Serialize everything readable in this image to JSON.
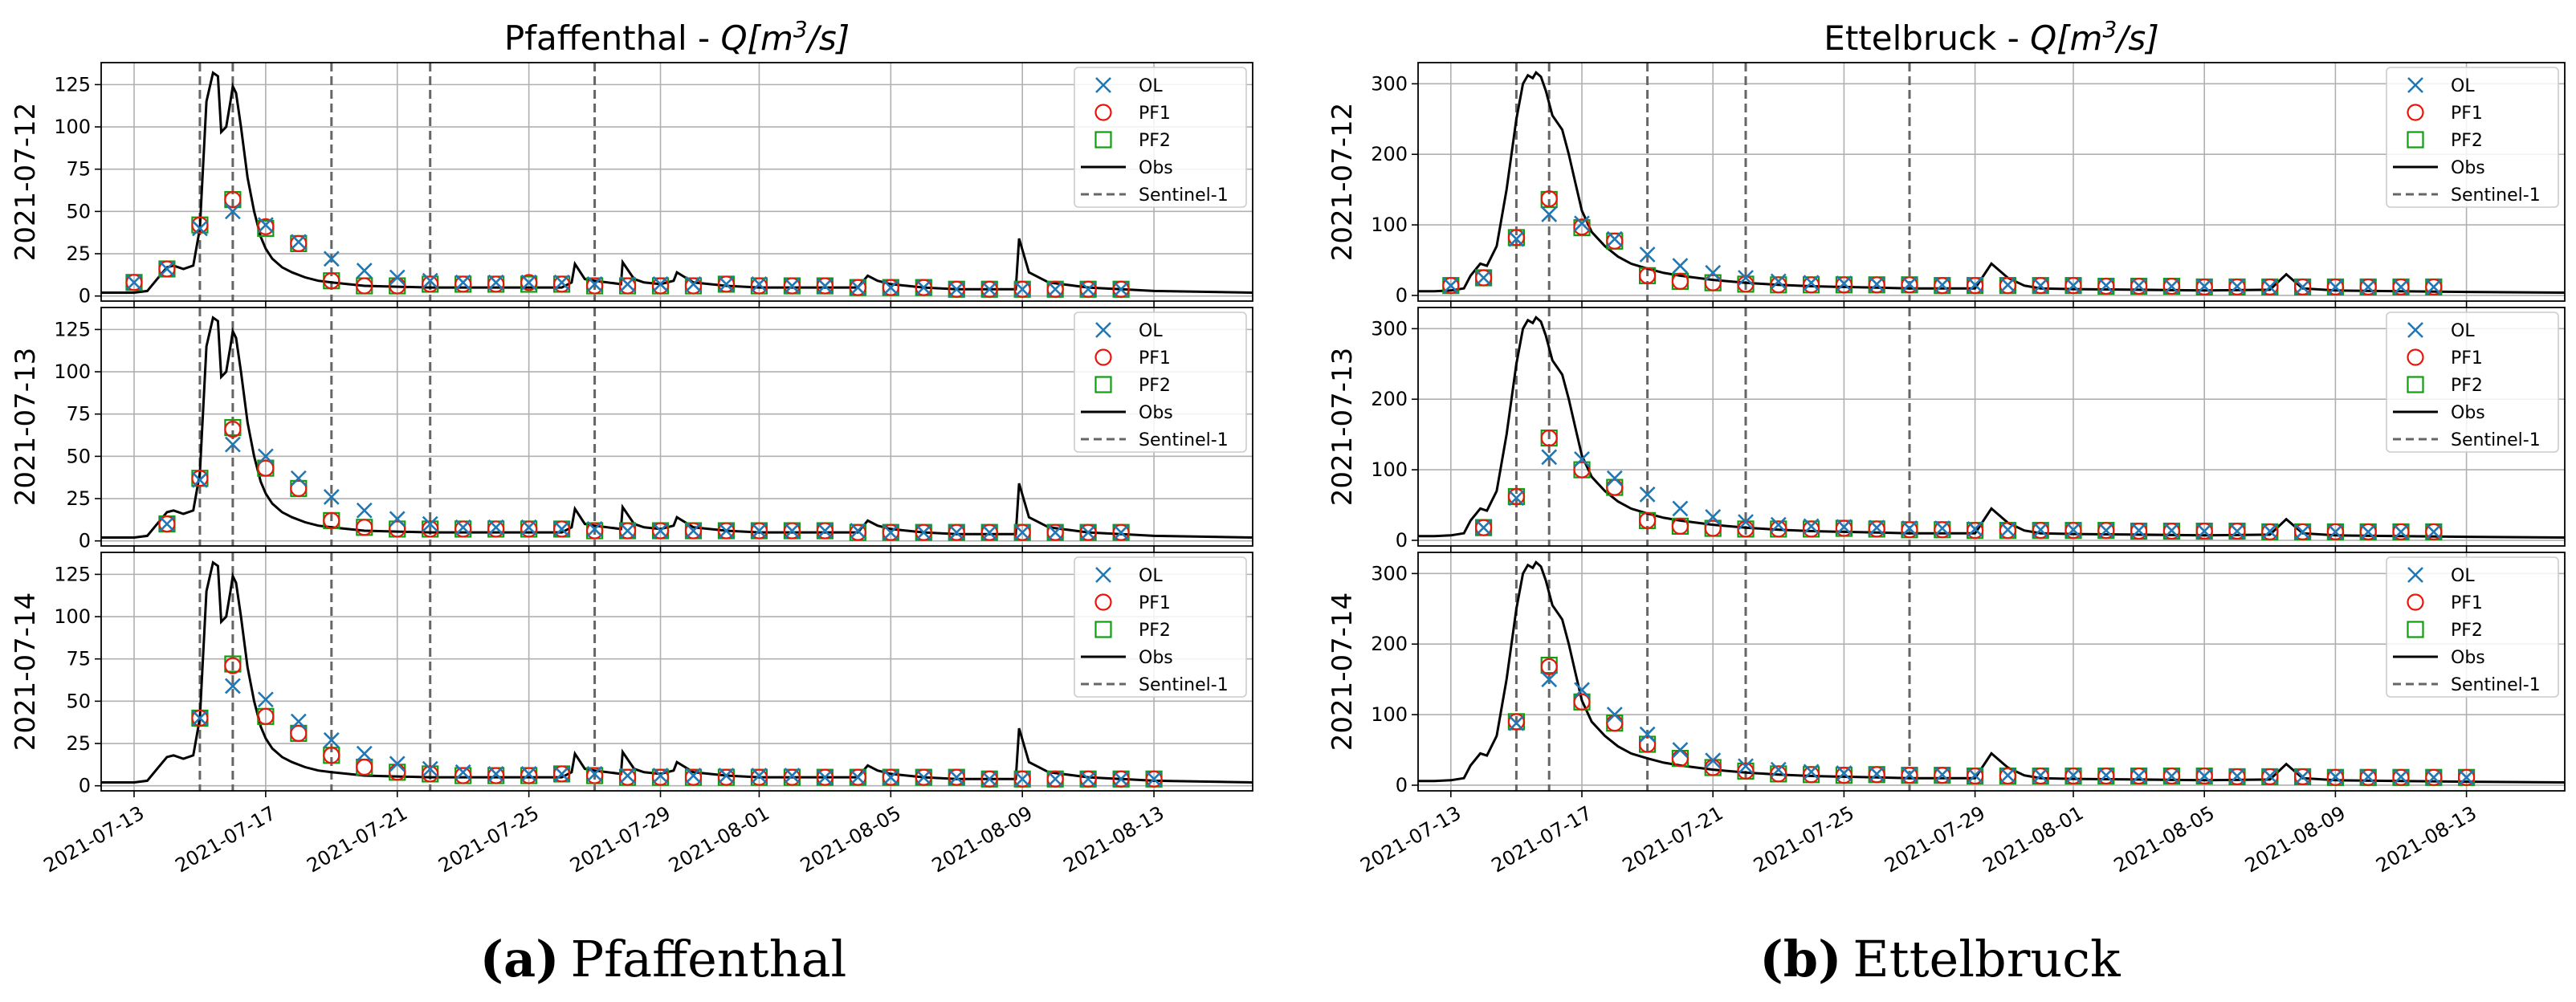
{
  "figure": {
    "captions": [
      {
        "letter": "(a)",
        "name": "Pfaffenthal"
      },
      {
        "letter": "(b)",
        "name": "Ettelbruck"
      }
    ]
  },
  "chart_data": [
    {
      "type": "line",
      "title_prefix": "Pfaffenthal - ",
      "title_math": "Q[m",
      "title_sup": "3",
      "title_tail": "/s]",
      "xlabel": "",
      "ylabel_per_row": [
        "2021-07-12",
        "2021-07-13",
        "2021-07-14"
      ],
      "xlim": [
        "2021-07-12",
        "2021-08-16"
      ],
      "ylim": [
        -3,
        138
      ],
      "yticks": [
        0,
        25,
        50,
        75,
        100,
        125
      ],
      "xtick_labels": [
        "2021-07-13",
        "2021-07-17",
        "2021-07-21",
        "2021-07-25",
        "2021-07-29",
        "2021-08-01",
        "2021-08-05",
        "2021-08-09",
        "2021-08-13"
      ],
      "sentinel_dates": [
        "2021-07-15",
        "2021-07-16",
        "2021-07-19",
        "2021-07-22",
        "2021-07-27"
      ],
      "legend": [
        "OL",
        "PF1",
        "PF2",
        "Obs",
        "Sentinel-1"
      ],
      "grid": true,
      "obs": {
        "name": "Obs",
        "t": [
          0,
          0.5,
          1.0,
          1.4,
          1.7,
          2.0,
          2.2,
          2.5,
          2.8,
          3.0,
          3.2,
          3.4,
          3.55,
          3.65,
          3.8,
          3.93,
          4.0,
          4.1,
          4.25,
          4.45,
          4.65,
          4.85,
          5.0,
          5.2,
          5.5,
          5.8,
          6.2,
          6.6,
          7.0,
          7.5,
          8.0,
          9.0,
          10.0,
          11.0,
          12.0,
          13.0,
          14.0,
          14.3,
          14.4,
          14.7,
          15.0,
          15.8,
          15.85,
          16.2,
          16.5,
          17.0,
          17.4,
          17.5,
          18.0,
          19.0,
          20.0,
          21.0,
          22.0,
          23.0,
          23.3,
          23.6,
          24.0,
          25.0,
          26.0,
          27.0,
          27.8,
          27.9,
          28.2,
          28.8,
          30.0,
          32.0,
          35.0
        ],
        "values": [
          2,
          2,
          2,
          3,
          10,
          17,
          18,
          16,
          18,
          40,
          115,
          132,
          130,
          97,
          100,
          115,
          124,
          120,
          100,
          70,
          50,
          35,
          28,
          22,
          17,
          14,
          11,
          9,
          8,
          7,
          6,
          5.5,
          5,
          5,
          5,
          5,
          5,
          8,
          19,
          10,
          9,
          7,
          20,
          10,
          8,
          7,
          9,
          14,
          8,
          6,
          5,
          5,
          5,
          5,
          12,
          9,
          7,
          5,
          4,
          4,
          4,
          34,
          14,
          8,
          5,
          3,
          2
        ]
      },
      "rows": [
        {
          "date": "2021-07-12",
          "t": [
            1,
            2,
            3,
            4,
            5,
            6,
            7,
            8,
            9,
            10,
            11,
            12,
            13,
            14,
            15,
            16,
            17,
            18,
            19,
            20,
            21,
            22,
            23,
            24,
            25,
            26,
            27,
            28,
            29,
            30,
            31
          ],
          "OL": [
            8,
            16,
            40,
            50,
            42,
            32,
            22,
            15,
            11,
            9,
            8,
            8,
            8,
            8,
            7,
            7,
            7,
            7,
            7,
            7,
            6,
            6,
            5,
            5,
            5,
            4,
            4,
            4,
            4,
            4,
            4
          ],
          "PF1": [
            8,
            16,
            42,
            57,
            41,
            31,
            9,
            6,
            6,
            7,
            7,
            7,
            8,
            7,
            6,
            6,
            6,
            6,
            7,
            6,
            6,
            6,
            5,
            5,
            5,
            4,
            4,
            4,
            4,
            4,
            4
          ],
          "PF2": [
            8,
            16,
            42,
            57,
            40,
            31,
            9,
            6,
            6,
            7,
            7,
            7,
            7,
            7,
            6,
            6,
            6,
            6,
            7,
            6,
            6,
            6,
            5,
            5,
            5,
            4,
            4,
            4,
            4,
            4,
            4
          ]
        },
        {
          "date": "2021-07-13",
          "t": [
            2,
            3,
            4,
            5,
            6,
            7,
            8,
            9,
            10,
            11,
            12,
            13,
            14,
            15,
            16,
            17,
            18,
            19,
            20,
            21,
            22,
            23,
            24,
            25,
            26,
            27,
            28,
            29,
            30,
            31
          ],
          "OL": [
            10,
            36,
            57,
            50,
            37,
            26,
            18,
            13,
            10,
            8,
            8,
            8,
            7,
            7,
            6,
            6,
            6,
            6,
            6,
            6,
            6,
            6,
            5,
            5,
            5,
            5,
            5,
            5,
            5,
            5
          ],
          "PF1": [
            10,
            37,
            66,
            43,
            31,
            12,
            8,
            7,
            7,
            7,
            7,
            7,
            7,
            6,
            6,
            6,
            6,
            6,
            6,
            6,
            6,
            5,
            5,
            5,
            5,
            5,
            5,
            5,
            5,
            5
          ],
          "PF2": [
            10,
            37,
            67,
            43,
            31,
            12,
            8,
            7,
            7,
            7,
            7,
            7,
            7,
            6,
            6,
            6,
            6,
            6,
            6,
            6,
            6,
            5,
            5,
            5,
            5,
            5,
            5,
            5,
            5,
            5
          ]
        },
        {
          "date": "2021-07-14",
          "t": [
            3,
            4,
            5,
            6,
            7,
            8,
            9,
            10,
            11,
            12,
            13,
            14,
            15,
            16,
            17,
            18,
            19,
            20,
            21,
            22,
            23,
            24,
            25,
            26,
            27,
            28,
            29,
            30,
            31,
            32
          ],
          "OL": [
            40,
            59,
            51,
            38,
            27,
            19,
            13,
            10,
            8,
            7,
            7,
            7,
            7,
            6,
            6,
            6,
            6,
            6,
            6,
            5,
            5,
            5,
            5,
            5,
            4,
            4,
            4,
            4,
            4,
            4
          ],
          "PF1": [
            40,
            71,
            41,
            31,
            18,
            11,
            8,
            7,
            6,
            6,
            6,
            7,
            6,
            5,
            5,
            5,
            5,
            5,
            5,
            5,
            5,
            5,
            5,
            5,
            4,
            4,
            4,
            4,
            4,
            4
          ],
          "PF2": [
            40,
            72,
            41,
            31,
            18,
            11,
            8,
            7,
            6,
            6,
            6,
            7,
            6,
            5,
            5,
            5,
            5,
            5,
            5,
            5,
            5,
            5,
            5,
            5,
            4,
            4,
            4,
            4,
            4,
            4
          ]
        }
      ]
    },
    {
      "type": "line",
      "title_prefix": "Ettelbruck - ",
      "title_math": "Q[m",
      "title_sup": "3",
      "title_tail": "/s]",
      "xlabel": "",
      "ylabel_per_row": [
        "2021-07-12",
        "2021-07-13",
        "2021-07-14"
      ],
      "xlim": [
        "2021-07-12",
        "2021-08-16"
      ],
      "ylim": [
        -8,
        330
      ],
      "yticks": [
        0,
        100,
        200,
        300
      ],
      "xtick_labels": [
        "2021-07-13",
        "2021-07-17",
        "2021-07-21",
        "2021-07-25",
        "2021-07-29",
        "2021-08-01",
        "2021-08-05",
        "2021-08-09",
        "2021-08-13"
      ],
      "sentinel_dates": [
        "2021-07-15",
        "2021-07-16",
        "2021-07-19",
        "2021-07-22",
        "2021-07-27"
      ],
      "legend": [
        "OL",
        "PF1",
        "PF2",
        "Obs",
        "Sentinel-1"
      ],
      "grid": true,
      "obs": {
        "name": "Obs",
        "t": [
          0,
          0.5,
          1.0,
          1.4,
          1.6,
          1.9,
          2.1,
          2.4,
          2.7,
          3.0,
          3.2,
          3.35,
          3.5,
          3.6,
          3.75,
          3.9,
          4.1,
          4.4,
          4.6,
          4.8,
          5.0,
          5.3,
          5.7,
          6.1,
          6.5,
          7.0,
          7.5,
          8.0,
          9.0,
          10.0,
          11.0,
          12.0,
          13.0,
          14.0,
          15.0,
          16.0,
          17.0,
          17.5,
          18.0,
          18.5,
          19.0,
          20.0,
          22.0,
          24.0,
          26.0,
          26.5,
          27.0,
          28.0,
          30.0,
          32.0,
          35.0
        ],
        "values": [
          6,
          6,
          7,
          10,
          28,
          45,
          42,
          70,
          150,
          250,
          300,
          312,
          308,
          316,
          310,
          290,
          255,
          235,
          200,
          160,
          120,
          90,
          70,
          55,
          45,
          38,
          32,
          28,
          22,
          18,
          15,
          13,
          12,
          11,
          10,
          10,
          10,
          45,
          25,
          14,
          10,
          9,
          8,
          7,
          8,
          30,
          10,
          7,
          6,
          5,
          4
        ]
      },
      "rows": [
        {
          "date": "2021-07-12",
          "t": [
            1,
            2,
            3,
            4,
            5,
            6,
            7,
            8,
            9,
            10,
            11,
            12,
            13,
            14,
            15,
            16,
            17,
            18,
            19,
            20,
            21,
            22,
            23,
            24,
            25,
            26,
            27,
            28,
            29,
            30,
            31
          ],
          "OL": [
            14,
            25,
            80,
            115,
            102,
            80,
            58,
            42,
            32,
            25,
            20,
            18,
            17,
            16,
            16,
            15,
            15,
            15,
            14,
            14,
            14,
            14,
            13,
            13,
            13,
            12,
            12,
            12,
            12,
            12,
            12
          ],
          "PF1": [
            14,
            25,
            82,
            137,
            97,
            77,
            28,
            20,
            18,
            16,
            15,
            15,
            15,
            15,
            15,
            14,
            14,
            14,
            14,
            14,
            13,
            13,
            13,
            12,
            12,
            12,
            12,
            12,
            12,
            12,
            12
          ],
          "PF2": [
            14,
            25,
            82,
            136,
            96,
            77,
            28,
            20,
            18,
            16,
            15,
            15,
            15,
            15,
            15,
            14,
            14,
            14,
            14,
            14,
            13,
            13,
            13,
            12,
            12,
            12,
            12,
            12,
            12,
            12,
            12
          ]
        },
        {
          "date": "2021-07-13",
          "t": [
            2,
            3,
            4,
            5,
            6,
            7,
            8,
            9,
            10,
            11,
            12,
            13,
            14,
            15,
            16,
            17,
            18,
            19,
            20,
            21,
            22,
            23,
            24,
            25,
            26,
            27,
            28,
            29,
            30,
            31
          ],
          "OL": [
            18,
            60,
            118,
            115,
            88,
            65,
            45,
            33,
            26,
            22,
            20,
            19,
            18,
            17,
            17,
            16,
            15,
            15,
            15,
            14,
            14,
            14,
            13,
            13,
            13,
            12,
            12,
            12,
            12,
            12
          ],
          "PF1": [
            18,
            62,
            145,
            100,
            75,
            28,
            20,
            17,
            16,
            16,
            16,
            17,
            16,
            15,
            15,
            14,
            14,
            14,
            14,
            14,
            13,
            13,
            13,
            13,
            12,
            12,
            12,
            12,
            12,
            12
          ],
          "PF2": [
            18,
            62,
            145,
            100,
            75,
            28,
            20,
            17,
            16,
            16,
            16,
            17,
            16,
            15,
            15,
            14,
            14,
            14,
            14,
            14,
            13,
            13,
            13,
            13,
            12,
            12,
            12,
            12,
            12,
            12
          ]
        },
        {
          "date": "2021-07-14",
          "t": [
            3,
            4,
            5,
            6,
            7,
            8,
            9,
            10,
            11,
            12,
            13,
            14,
            15,
            16,
            17,
            18,
            19,
            20,
            21,
            22,
            23,
            24,
            25,
            26,
            27,
            28,
            29,
            30,
            31,
            32
          ],
          "OL": [
            88,
            150,
            135,
            100,
            72,
            50,
            35,
            27,
            22,
            19,
            17,
            16,
            15,
            15,
            14,
            14,
            14,
            14,
            14,
            13,
            13,
            13,
            13,
            13,
            12,
            12,
            12,
            12,
            11,
            11
          ],
          "PF1": [
            90,
            168,
            118,
            88,
            58,
            38,
            25,
            20,
            16,
            15,
            14,
            15,
            14,
            14,
            13,
            13,
            13,
            13,
            13,
            13,
            13,
            13,
            12,
            12,
            12,
            11,
            11,
            11,
            11,
            11
          ],
          "PF2": [
            90,
            170,
            118,
            88,
            58,
            38,
            25,
            20,
            16,
            15,
            14,
            15,
            14,
            14,
            13,
            13,
            13,
            13,
            13,
            13,
            13,
            13,
            12,
            12,
            12,
            11,
            11,
            11,
            11,
            11
          ]
        }
      ]
    }
  ]
}
